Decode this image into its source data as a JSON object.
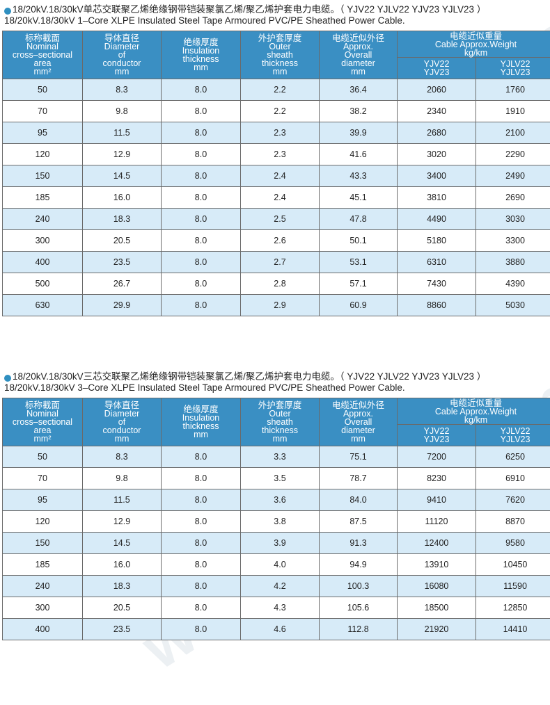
{
  "sections": [
    {
      "title_cn": "18/20kV.18/30kV单芯交联聚乙烯绝缘钢带铠装聚氯乙烯/聚乙烯护套电力电缆。（ YJV22  YJLV22  YJV23  YJLV23 ）",
      "title_en": "18/20kV.18/30kV 1–Core XLPE Insulated Steel Tape Armoured PVC/PE Sheathed Power Cable.",
      "headers": {
        "col1": [
          "标称截面",
          "Nominal",
          "cross–sectional",
          "area",
          "mm²"
        ],
        "col2": [
          "导体直径",
          "Diameter",
          "of",
          "conductor",
          "mm"
        ],
        "col3": [
          "绝缘厚度",
          "Insulation",
          "thickness",
          "mm"
        ],
        "col4": [
          "外护套厚度",
          "Outer",
          "sheath",
          "thickness",
          "mm"
        ],
        "col5": [
          "电缆近似外径",
          "Approx.",
          "Overall",
          "diameter",
          "mm"
        ],
        "weight": [
          "电缆近似重量",
          "Cable Approx.Weight",
          "kg/km"
        ],
        "sub1": [
          "YJV22",
          "YJV23"
        ],
        "sub2": [
          "YJLV22",
          "YJLV23"
        ]
      },
      "rows": [
        [
          "50",
          "8.3",
          "8.0",
          "2.2",
          "36.4",
          "2060",
          "1760"
        ],
        [
          "70",
          "9.8",
          "8.0",
          "2.2",
          "38.2",
          "2340",
          "1910"
        ],
        [
          "95",
          "11.5",
          "8.0",
          "2.3",
          "39.9",
          "2680",
          "2100"
        ],
        [
          "120",
          "12.9",
          "8.0",
          "2.3",
          "41.6",
          "3020",
          "2290"
        ],
        [
          "150",
          "14.5",
          "8.0",
          "2.4",
          "43.3",
          "3400",
          "2490"
        ],
        [
          "185",
          "16.0",
          "8.0",
          "2.4",
          "45.1",
          "3810",
          "2690"
        ],
        [
          "240",
          "18.3",
          "8.0",
          "2.5",
          "47.8",
          "4490",
          "3030"
        ],
        [
          "300",
          "20.5",
          "8.0",
          "2.6",
          "50.1",
          "5180",
          "3300"
        ],
        [
          "400",
          "23.5",
          "8.0",
          "2.7",
          "53.1",
          "6310",
          "3880"
        ],
        [
          "500",
          "26.7",
          "8.0",
          "2.8",
          "57.1",
          "7430",
          "4390"
        ],
        [
          "630",
          "29.9",
          "8.0",
          "2.9",
          "60.9",
          "8860",
          "5030"
        ]
      ]
    },
    {
      "title_cn": "18/20kV.18/30kV三芯交联聚乙烯绝缘钢带铠装聚氯乙烯/聚乙烯护套电力电缆。（ YJV22  YJLV22  YJV23  YJLV23 ）",
      "title_en": "18/20kV.18/30kV 3–Core XLPE Insulated Steel Tape Armoured PVC/PE Sheathed Power Cable.",
      "headers": {
        "col1": [
          "标称截面",
          "Nominal",
          "cross–sectional",
          "area",
          "mm²"
        ],
        "col2": [
          "导体直径",
          "Diameter",
          "of",
          "conductor",
          "mm"
        ],
        "col3": [
          "绝缘厚度",
          "Insulation",
          "thickness",
          "mm"
        ],
        "col4": [
          "外护套厚度",
          "Outer",
          "sheath",
          "thickness",
          "mm"
        ],
        "col5": [
          "电缆近似外径",
          "Approx.",
          "Overall",
          "diameter",
          "mm"
        ],
        "weight": [
          "电缆近似重量",
          "Cable Approx.Weight",
          "kg/km"
        ],
        "sub1": [
          "YJV22",
          "YJV23"
        ],
        "sub2": [
          "YJLV22",
          "YJLV23"
        ]
      },
      "rows": [
        [
          "50",
          "8.3",
          "8.0",
          "3.3",
          "75.1",
          "7200",
          "6250"
        ],
        [
          "70",
          "9.8",
          "8.0",
          "3.5",
          "78.7",
          "8230",
          "6910"
        ],
        [
          "95",
          "11.5",
          "8.0",
          "3.6",
          "84.0",
          "9410",
          "7620"
        ],
        [
          "120",
          "12.9",
          "8.0",
          "3.8",
          "87.5",
          "11120",
          "8870"
        ],
        [
          "150",
          "14.5",
          "8.0",
          "3.9",
          "91.3",
          "12400",
          "9580"
        ],
        [
          "185",
          "16.0",
          "8.0",
          "4.0",
          "94.9",
          "13910",
          "10450"
        ],
        [
          "240",
          "18.3",
          "8.0",
          "4.2",
          "100.3",
          "16080",
          "11590"
        ],
        [
          "300",
          "20.5",
          "8.0",
          "4.3",
          "105.6",
          "18500",
          "12850"
        ],
        [
          "400",
          "23.5",
          "8.0",
          "4.6",
          "112.8",
          "21920",
          "14410"
        ]
      ]
    }
  ],
  "watermark": "www.ehsy.com",
  "colors": {
    "header_bg": "#3a8fc3",
    "row_alt_bg": "#d7ebf8",
    "bullet": "#2f8fc0"
  }
}
